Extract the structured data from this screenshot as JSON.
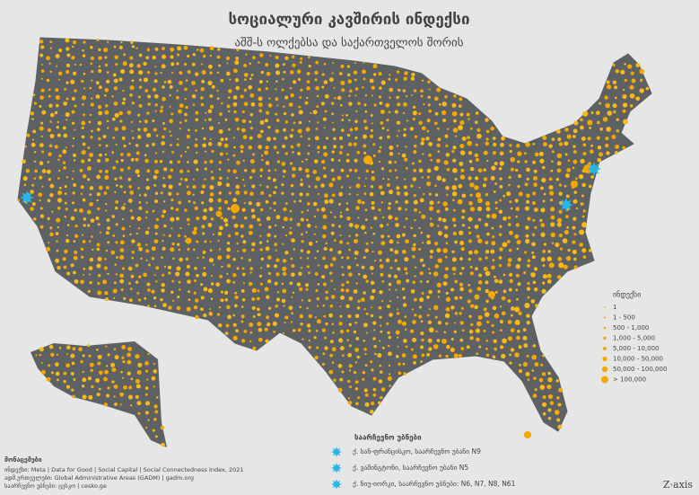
{
  "title": "სოციალური კავშირის ინდექსი",
  "subtitle": "აშშ-ს ოლქებსა და საქართველოს შორის",
  "legend": {
    "title": "ინდექსი",
    "items": [
      "1",
      "1 - 500",
      "500 - 1,000",
      "1,000 - 5,000",
      "5,000 - 10,000",
      "10,000 - 50,000",
      "50,000 - 100,000",
      "> 100,000"
    ]
  },
  "stations": {
    "title": "საარჩევნო უბნები",
    "items": [
      "ქ. სან-ფრანცისკო, საარჩევნო უბანი N9",
      "ქ. ვაშინგტონი, საარჩევნო უბანი N5",
      "ქ. ნიუ-იორკი, საარჩევნო უბნები: N6, N7, N8, N61"
    ]
  },
  "sources": {
    "title": "მონაცემები",
    "lines": [
      "ინდექსი: Meta | Data for Good | Social Capital | Social Connectedness Index, 2021",
      "ადმ.ერთეულები: Global Administrative Areas (GADM) | gadm.org",
      "საარჩევნო უბნები: ცესკო | cesko.ge"
    ]
  },
  "brand": "Z·axis"
}
